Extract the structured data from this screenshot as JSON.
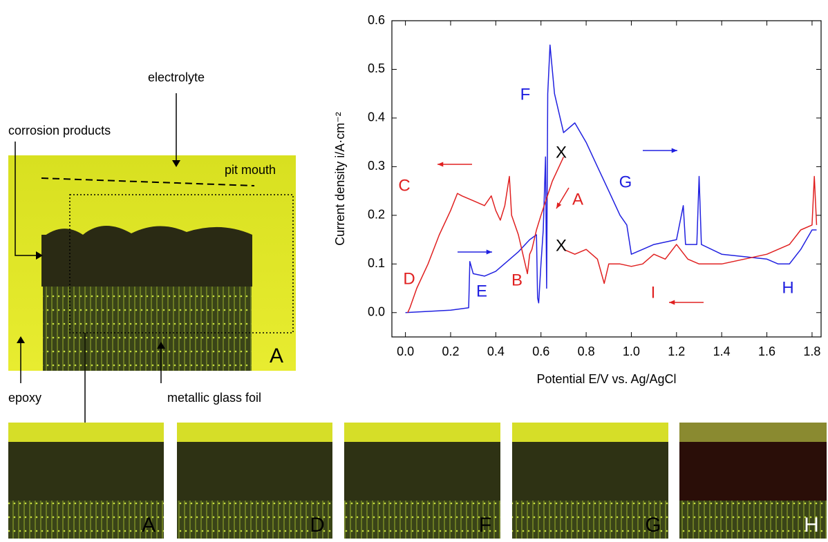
{
  "micrograph": {
    "labels": [
      "electrolyte",
      "corrosion products",
      "pit mouth",
      "epoxy",
      "metallic glass foil"
    ],
    "panel_letter": "A"
  },
  "thumbnails": [
    "A",
    "D",
    "F",
    "G",
    "H"
  ],
  "chart_data": {
    "type": "line",
    "x_label": "Potential E/V vs. Ag/AgCl",
    "y_label": "Current density i/A·cm⁻²",
    "xlim": [
      -0.06,
      1.84
    ],
    "ylim": [
      -0.05,
      0.6
    ],
    "xticks": [
      {
        "value": 0,
        "label": "0.0"
      },
      0.2,
      0.4,
      0.6,
      0.8,
      {
        "value": 1,
        "label": "1.0"
      },
      1.2,
      1.4,
      1.6,
      1.8
    ],
    "yticks": [
      {
        "value": 0,
        "label": "0.0"
      },
      0.1,
      0.2,
      0.3,
      0.4,
      0.5,
      0.6
    ],
    "series": [
      {
        "color": "#2020e0",
        "x": [
          0.0,
          0.2,
          0.28,
          0.285,
          0.3,
          0.35,
          0.4,
          0.45,
          0.5,
          0.55,
          0.58,
          0.585,
          0.59,
          0.6,
          0.61,
          0.62,
          0.625,
          0.63,
          0.64,
          0.66,
          0.7,
          0.75,
          0.8,
          0.85,
          0.9,
          0.95,
          0.98,
          1.0,
          1.05,
          1.1,
          1.2,
          1.23,
          1.24,
          1.29,
          1.3,
          1.31,
          1.4,
          1.5,
          1.6,
          1.65,
          1.7,
          1.75,
          1.8,
          1.82
        ],
        "values": [
          0.0,
          0.005,
          0.01,
          0.105,
          0.08,
          0.075,
          0.085,
          0.105,
          0.125,
          0.15,
          0.16,
          0.03,
          0.02,
          0.1,
          0.17,
          0.32,
          0.05,
          0.45,
          0.55,
          0.45,
          0.37,
          0.39,
          0.35,
          0.3,
          0.25,
          0.2,
          0.18,
          0.12,
          0.13,
          0.14,
          0.15,
          0.22,
          0.14,
          0.14,
          0.28,
          0.14,
          0.12,
          0.115,
          0.11,
          0.1,
          0.1,
          0.13,
          0.17,
          0.17
        ]
      },
      {
        "color": "#e02020",
        "x": [
          0.7,
          0.65,
          0.6,
          0.58,
          0.56,
          0.55,
          0.54,
          0.5,
          0.47,
          0.46,
          0.44,
          0.42,
          0.4,
          0.38,
          0.35,
          0.3,
          0.25,
          0.23,
          0.2,
          0.15,
          0.1,
          0.05,
          0.02,
          0.01,
          null,
          0.7,
          0.75,
          0.8,
          0.85,
          0.88,
          0.9,
          0.95,
          1.0,
          1.05,
          1.1,
          1.15,
          1.2,
          1.25,
          1.3,
          1.4,
          1.5,
          1.6,
          1.7,
          1.75,
          1.8,
          1.81,
          1.82
        ],
        "values": [
          0.32,
          0.27,
          0.2,
          0.17,
          0.13,
          0.12,
          0.08,
          0.16,
          0.2,
          0.28,
          0.22,
          0.19,
          0.21,
          0.24,
          0.22,
          0.23,
          0.24,
          0.245,
          0.21,
          0.16,
          0.1,
          0.05,
          0.01,
          0.0,
          null,
          0.13,
          0.12,
          0.13,
          0.11,
          0.06,
          0.1,
          0.1,
          0.095,
          0.1,
          0.12,
          0.11,
          0.14,
          0.11,
          0.1,
          0.1,
          0.11,
          0.12,
          0.14,
          0.17,
          0.18,
          0.28,
          0.18
        ]
      }
    ],
    "annotations": [
      {
        "text": "A",
        "color": "#e02020"
      },
      {
        "text": "B",
        "color": "#e02020"
      },
      {
        "text": "C",
        "color": "#e02020"
      },
      {
        "text": "D",
        "color": "#e02020"
      },
      {
        "text": "I",
        "color": "#e02020"
      },
      {
        "text": "E",
        "color": "#2020e0"
      },
      {
        "text": "F",
        "color": "#2020e0"
      },
      {
        "text": "G",
        "color": "#2020e0"
      },
      {
        "text": "H",
        "color": "#2020e0"
      },
      {
        "text": "X",
        "color": "#000000"
      },
      {
        "text": "X",
        "color": "#000000"
      }
    ]
  }
}
